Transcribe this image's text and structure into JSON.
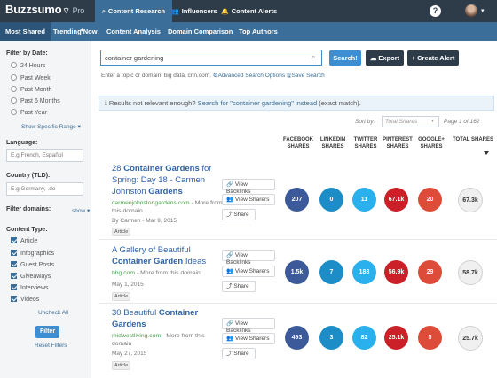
{
  "topbar": {
    "logo": "Buzzsumo",
    "logo_suffix": "Pro",
    "tabs": [
      {
        "label": "Content Research",
        "icon": "search-icon"
      },
      {
        "label": "Influencers",
        "icon": "users-icon"
      },
      {
        "label": "Content Alerts",
        "icon": "bell-icon"
      }
    ],
    "help": "?"
  },
  "subnav": {
    "tabs": [
      "Most Shared",
      "Trending Now",
      "Content Analysis",
      "Domain Comparison",
      "Top Authors"
    ]
  },
  "sidebar": {
    "date_title": "Filter by Date:",
    "date_options": [
      "24 Hours",
      "Past Week",
      "Past Month",
      "Past 6 Months",
      "Past Year"
    ],
    "specific_range": "Show Specific Range ▾",
    "language_title": "Language:",
    "language_placeholder": "E.g French, Español",
    "country_title": "Country (TLD):",
    "country_placeholder": "E.g Germany, .de",
    "domains_title": "Filter domains:",
    "domains_show": "show ▾",
    "content_type_title": "Content Type:",
    "content_types": [
      "Article",
      "Infographics",
      "Guest Posts",
      "Giveaways",
      "Interviews",
      "Videos"
    ],
    "uncheck_all": "Uncheck All",
    "filter_button": "Filter",
    "reset_filters": "Reset Filters"
  },
  "search": {
    "value": "container gardening",
    "search_button": "Search!",
    "export_button": "Export",
    "alert_button": "+ Create Alert",
    "hint_prefix": "Enter a topic or domain: big data, cnn.com.",
    "advanced_options": "Advanced Search Options",
    "save_search": "Save Search"
  },
  "info": {
    "prefix": "ℹ Results not relevant enough?",
    "link": "Search for \"container gardening\" instead",
    "suffix": "(exact match)."
  },
  "sort": {
    "label": "Sort by:",
    "value": "Total Shares",
    "page_info": "Page 1 of 162"
  },
  "columns": [
    "FACEBOOK SHARES",
    "LINKEDIN SHARES",
    "TWITTER SHARES",
    "PINTEREST SHARES",
    "GOOGLE+ SHARES",
    "TOTAL SHARES"
  ],
  "actions": {
    "backlinks": "View Backlinks",
    "sharers": "View Sharers",
    "share": "Share"
  },
  "articles": [
    {
      "title_parts": [
        "28 ",
        "Container Gardens",
        " for Spring: Day 18 - Carmen Johnston ",
        "Gardens"
      ],
      "domain": "carmenjohnstongardens.com",
      "more": " - More from this domain",
      "meta": "By Carmen - Mar 9, 2015",
      "tag": "Article",
      "shares": {
        "facebook": "207",
        "linkedin": "0",
        "twitter": "11",
        "pinterest": "67.1k",
        "googleplus": "20",
        "total": "67.3k"
      }
    },
    {
      "title_parts": [
        "A Gallery of Beautiful ",
        "Container Garden",
        " Ideas",
        ""
      ],
      "domain": "bhg.com",
      "more": " - More from this domain",
      "meta": "May 1, 2015",
      "tag": "Article",
      "shares": {
        "facebook": "1.5k",
        "linkedin": "7",
        "twitter": "188",
        "pinterest": "56.9k",
        "googleplus": "29",
        "total": "58.7k"
      }
    },
    {
      "title_parts": [
        "30 Beautiful ",
        "Container Gardens",
        "",
        ""
      ],
      "domain": "midwestliving.com",
      "more": " - More from this domain",
      "meta": "May 27, 2015",
      "tag": "Article",
      "shares": {
        "facebook": "493",
        "linkedin": "3",
        "twitter": "82",
        "pinterest": "25.1k",
        "googleplus": "5",
        "total": "25.7k"
      }
    }
  ]
}
